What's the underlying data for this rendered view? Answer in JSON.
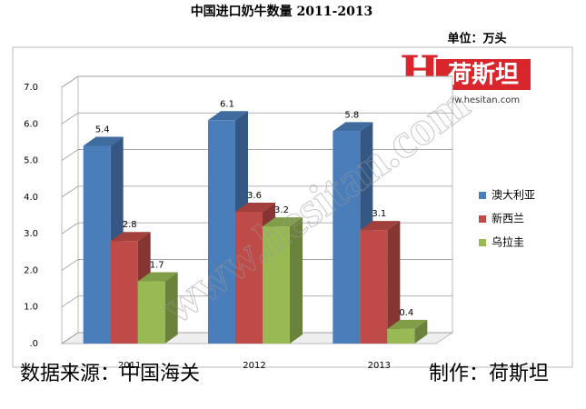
{
  "chart_data": {
    "type": "bar3d",
    "title": "中国进口奶牛数量  2011-2013",
    "unit_label": "单位：万头",
    "source": "数据来源：中国海关",
    "maker": "制作：荷斯坦",
    "logo": {
      "mark": "H",
      "name": "荷斯坦",
      "url": "www.hesitan.com"
    },
    "watermark": "www.hesitan.com",
    "categories": [
      "2011",
      "2012",
      "2013"
    ],
    "series": [
      {
        "name": "澳大利亚",
        "color": "#4a7ebb",
        "values": [
          5.4,
          6.1,
          5.8
        ]
      },
      {
        "name": "新西兰",
        "color": "#be4b48",
        "values": [
          2.8,
          3.6,
          3.1
        ]
      },
      {
        "name": "乌拉圭",
        "color": "#98b954",
        "values": [
          1.7,
          3.2,
          0.4
        ]
      }
    ],
    "ylim": [
      0,
      7
    ],
    "yticks": [
      {
        "value": 0,
        "label": ".0"
      },
      {
        "value": 1,
        "label": "1.0"
      },
      {
        "value": 2,
        "label": "2.0"
      },
      {
        "value": 3,
        "label": "3.0"
      },
      {
        "value": 4,
        "label": "4.0"
      },
      {
        "value": 5,
        "label": "5.0"
      },
      {
        "value": 6,
        "label": "6.0"
      },
      {
        "value": 7,
        "label": "7.0"
      }
    ],
    "grid": true
  }
}
